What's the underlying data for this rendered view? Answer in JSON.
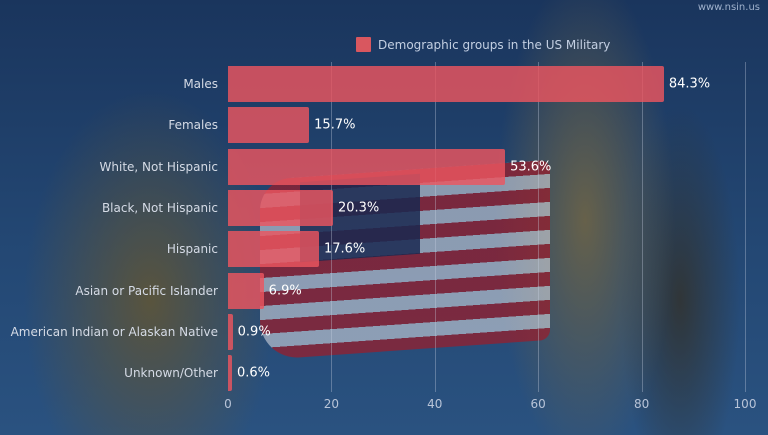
{
  "watermark": "www.nsin.us",
  "legend": {
    "label": "Demographic groups in the US Military",
    "color": "#d9575f"
  },
  "chart_data": {
    "type": "bar",
    "orientation": "horizontal",
    "title": "",
    "xlabel": "",
    "ylabel": "",
    "xlim": [
      0,
      100
    ],
    "grid": true,
    "legend_position": "top",
    "x_ticks": [
      "0",
      "20",
      "40",
      "60",
      "80",
      "100"
    ],
    "categories": [
      "Males",
      "Females",
      "White, Not Hispanic",
      "Black, Not Hispanic",
      "Hispanic",
      "Asian or Pacific Islander",
      "American Indian or Alaskan Native",
      "Unknown/Other"
    ],
    "series": [
      {
        "name": "Demographic groups in the US Military",
        "values": [
          84.3,
          15.7,
          53.6,
          20.3,
          17.6,
          6.9,
          0.9,
          0.6
        ],
        "labels": [
          "84.3%",
          "15.7%",
          "53.6%",
          "20.3%",
          "17.6%",
          "6.9%",
          "0.9%",
          "0.6%"
        ]
      }
    ]
  }
}
